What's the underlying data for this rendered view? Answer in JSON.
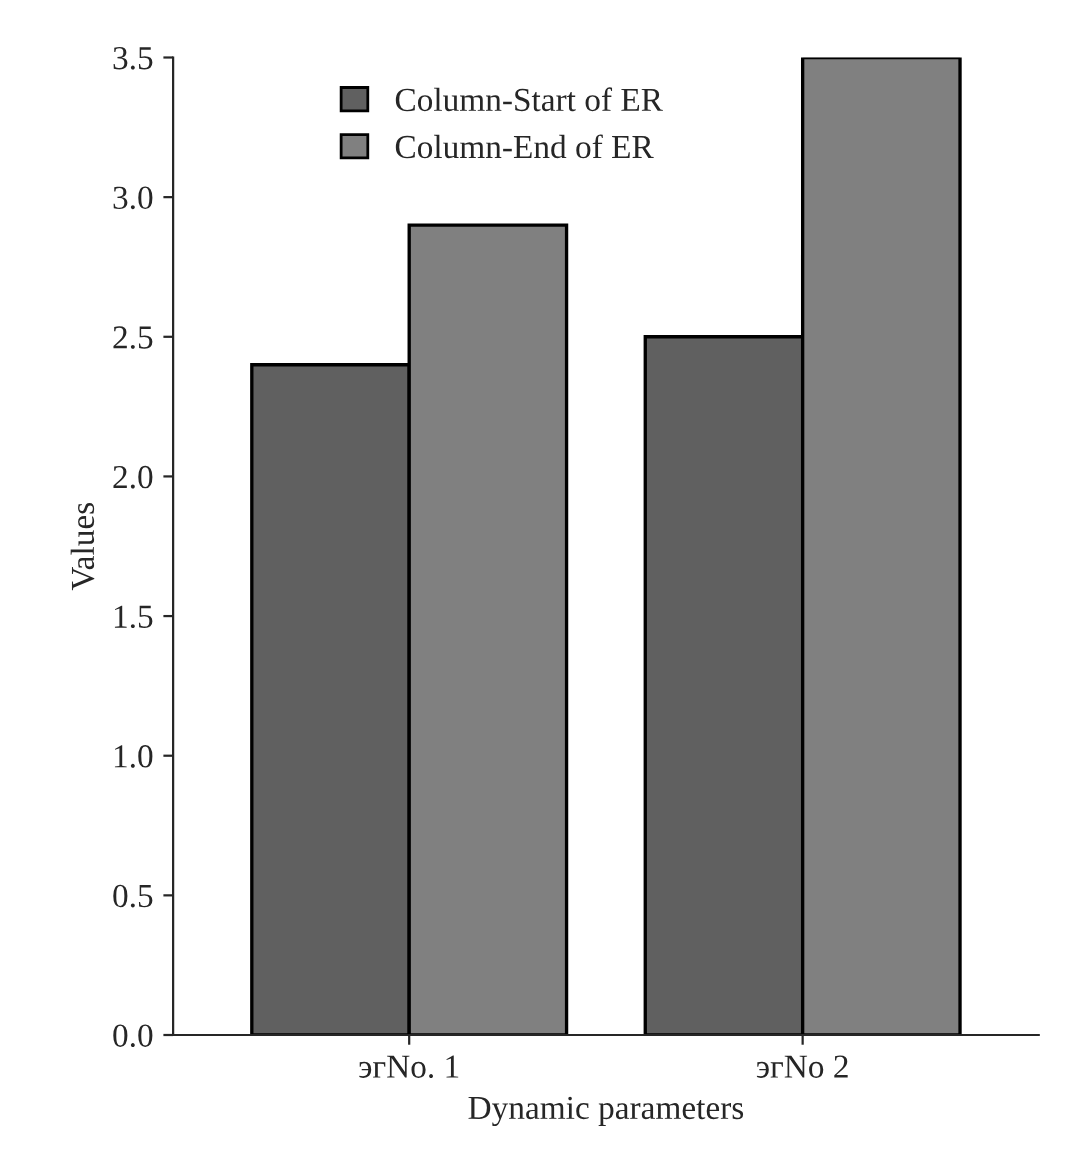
{
  "chart_data": {
    "type": "bar",
    "xlabel": "Dynamic parameters",
    "ylabel": "Values",
    "categories": [
      "эгNo. 1",
      "эгNo 2"
    ],
    "series": [
      {
        "name": "Column-Start of ER",
        "color": "#606060",
        "values": [
          2.4,
          2.5
        ]
      },
      {
        "name": "Column-End of ER",
        "color": "#808080",
        "values": [
          2.9,
          3.5
        ]
      }
    ],
    "ylim": [
      0,
      3.5
    ],
    "yticks": [
      {
        "value": 0,
        "label": "0.0"
      },
      0.5,
      {
        "value": 1,
        "label": "1.0"
      },
      1.5,
      {
        "value": 2,
        "label": "2.0"
      },
      2.5,
      {
        "value": 3,
        "label": "3.0"
      },
      3.5
    ],
    "grid": false,
    "legend": "top"
  }
}
